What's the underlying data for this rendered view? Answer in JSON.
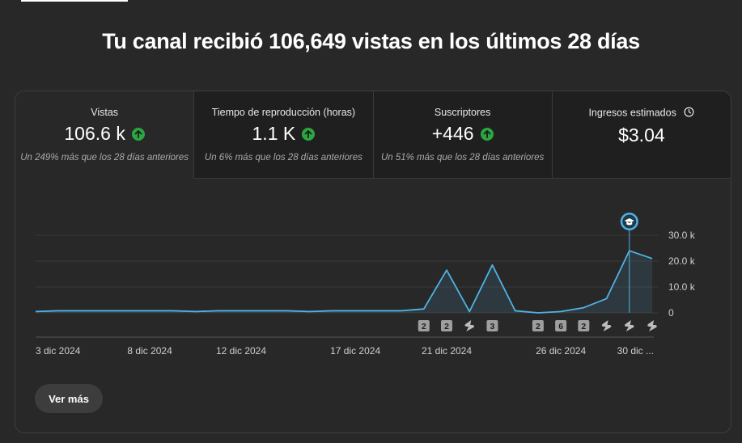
{
  "headline": "Tu canal recibió 106,649 vistas en los últimos 28 días",
  "metrics": [
    {
      "label": "Vistas",
      "value": "106.6 k",
      "trend": "up",
      "sub": "Un 249% más que los 28 días anteriores"
    },
    {
      "label": "Tiempo de reproducción (horas)",
      "value": "1.1 K",
      "trend": "up",
      "sub": "Un 6% más que los 28 días anteriores"
    },
    {
      "label": "Suscriptores",
      "value": "+446",
      "trend": "up",
      "sub": "Un 51% más que los 28 días anteriores"
    },
    {
      "label": "Ingresos estimados",
      "value": "$3.04",
      "icon": "clock-icon"
    }
  ],
  "colors": {
    "accent": "#3ea6ff",
    "line": "#4fb3e6",
    "up": "#2ba640"
  },
  "chart_data": {
    "type": "area",
    "x": [
      "3 dic",
      "4 dic",
      "5 dic",
      "6 dic",
      "7 dic",
      "8 dic",
      "9 dic",
      "10 dic",
      "11 dic",
      "12 dic",
      "13 dic",
      "14 dic",
      "15 dic",
      "16 dic",
      "17 dic",
      "18 dic",
      "19 dic",
      "20 dic",
      "21 dic",
      "22 dic",
      "23 dic",
      "24 dic",
      "25 dic",
      "26 dic",
      "27 dic",
      "28 dic",
      "29 dic",
      "30 dic"
    ],
    "values": [
      500,
      800,
      800,
      800,
      800,
      800,
      800,
      500,
      800,
      800,
      800,
      800,
      500,
      800,
      800,
      800,
      800,
      1500,
      16500,
      500,
      18500,
      800,
      0,
      500,
      2000,
      5500,
      24000,
      21000
    ],
    "x_ticks": [
      "3 dic 2024",
      "8 dic 2024",
      "12 dic 2024",
      "17 dic 2024",
      "21 dic 2024",
      "26 dic 2024",
      "30 dic ..."
    ],
    "y_ticks": [
      "30.0 k",
      "20.0 k",
      "10.0 k",
      "0"
    ],
    "ylim": [
      0,
      30000
    ],
    "grid": true,
    "markers": [
      {
        "day": "20 dic",
        "label": "2",
        "kind": "count"
      },
      {
        "day": "21 dic",
        "label": "2",
        "kind": "count"
      },
      {
        "day": "22 dic",
        "label": "",
        "kind": "shorts"
      },
      {
        "day": "23 dic",
        "label": "3",
        "kind": "count"
      },
      {
        "day": "24 dic",
        "label": "",
        "kind": "empty"
      },
      {
        "day": "25 dic",
        "label": "2",
        "kind": "count"
      },
      {
        "day": "26 dic",
        "label": "6",
        "kind": "count"
      },
      {
        "day": "27 dic",
        "label": "2",
        "kind": "count"
      },
      {
        "day": "28 dic",
        "label": "",
        "kind": "shorts"
      },
      {
        "day": "29 dic",
        "label": "",
        "kind": "shorts"
      },
      {
        "day": "30 dic",
        "label": "",
        "kind": "shorts"
      }
    ],
    "milestone": {
      "day": "29 dic",
      "icon": "graduation-cap-icon"
    }
  },
  "button": {
    "label": "Ver más"
  }
}
